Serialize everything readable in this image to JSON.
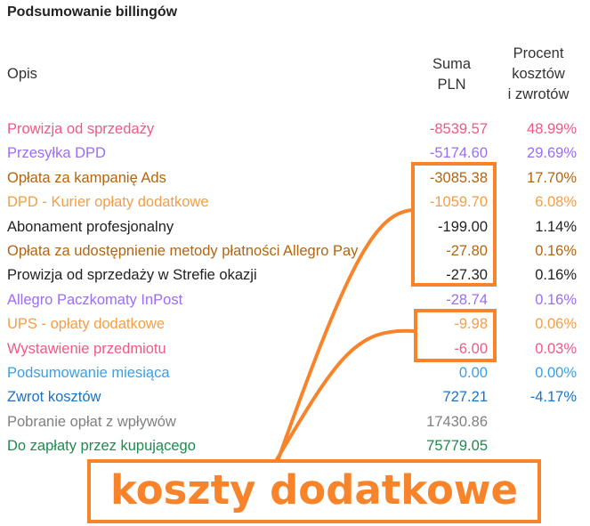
{
  "title": "Podsumowanie billingów",
  "headers": {
    "desc": "Opis",
    "sum": [
      "Suma",
      "PLN"
    ],
    "pct": [
      "Procent",
      "kosztów",
      "i zwrotów"
    ]
  },
  "rows": [
    {
      "label": "Prowizja od sprzedaży",
      "sum": "-8539.57",
      "pct": "48.99%",
      "color": "#EF5A85"
    },
    {
      "label": "Przesyłka DPD",
      "sum": "-5174.60",
      "pct": "29.69%",
      "color": "#9B6DF5"
    },
    {
      "label": "Opłata za kampanię Ads",
      "sum": "-3085.38",
      "pct": "17.70%",
      "color": "#B3650F"
    },
    {
      "label": "DPD - Kurier opłaty dodatkowe",
      "sum": "-1059.70",
      "pct": "6.08%",
      "color": "#F59E45"
    },
    {
      "label": "Abonament profesjonalny",
      "sum": "-199.00",
      "pct": "1.14%",
      "color": "#222222"
    },
    {
      "label": "Opłata za udostępnienie metody płatności Allegro Pay",
      "sum": "-27.80",
      "pct": "0.16%",
      "color": "#B3650F"
    },
    {
      "label": "Prowizja od sprzedaży w Strefie okazji",
      "sum": "-27.30",
      "pct": "0.16%",
      "color": "#222222"
    },
    {
      "label": "Allegro Paczkomaty InPost",
      "sum": "-28.74",
      "pct": "0.16%",
      "color": "#9B6DF5"
    },
    {
      "label": "UPS - opłaty dodatkowe",
      "sum": "-9.98",
      "pct": "0.06%",
      "color": "#F59E45"
    },
    {
      "label": "Wystawienie przedmiotu",
      "sum": "-6.00",
      "pct": "0.03%",
      "color": "#EF5A85"
    },
    {
      "label": "Podsumowanie miesiąca",
      "sum": "0.00",
      "pct": "0.00%",
      "color": "#3AA0E6"
    },
    {
      "label": "Zwrot kosztów",
      "sum": "727.21",
      "pct": "-4.17%",
      "color": "#1A73C8"
    },
    {
      "label": "Pobranie opłat z wpływów",
      "sum": "17430.86",
      "pct": "",
      "color": "#808080"
    },
    {
      "label": "Do zapłaty przez kupującego",
      "sum": "75779.05",
      "pct": "",
      "color": "#1E8A4E"
    }
  ],
  "annotation": {
    "text": "koszty dodatkowe",
    "color": "#F7832A"
  }
}
